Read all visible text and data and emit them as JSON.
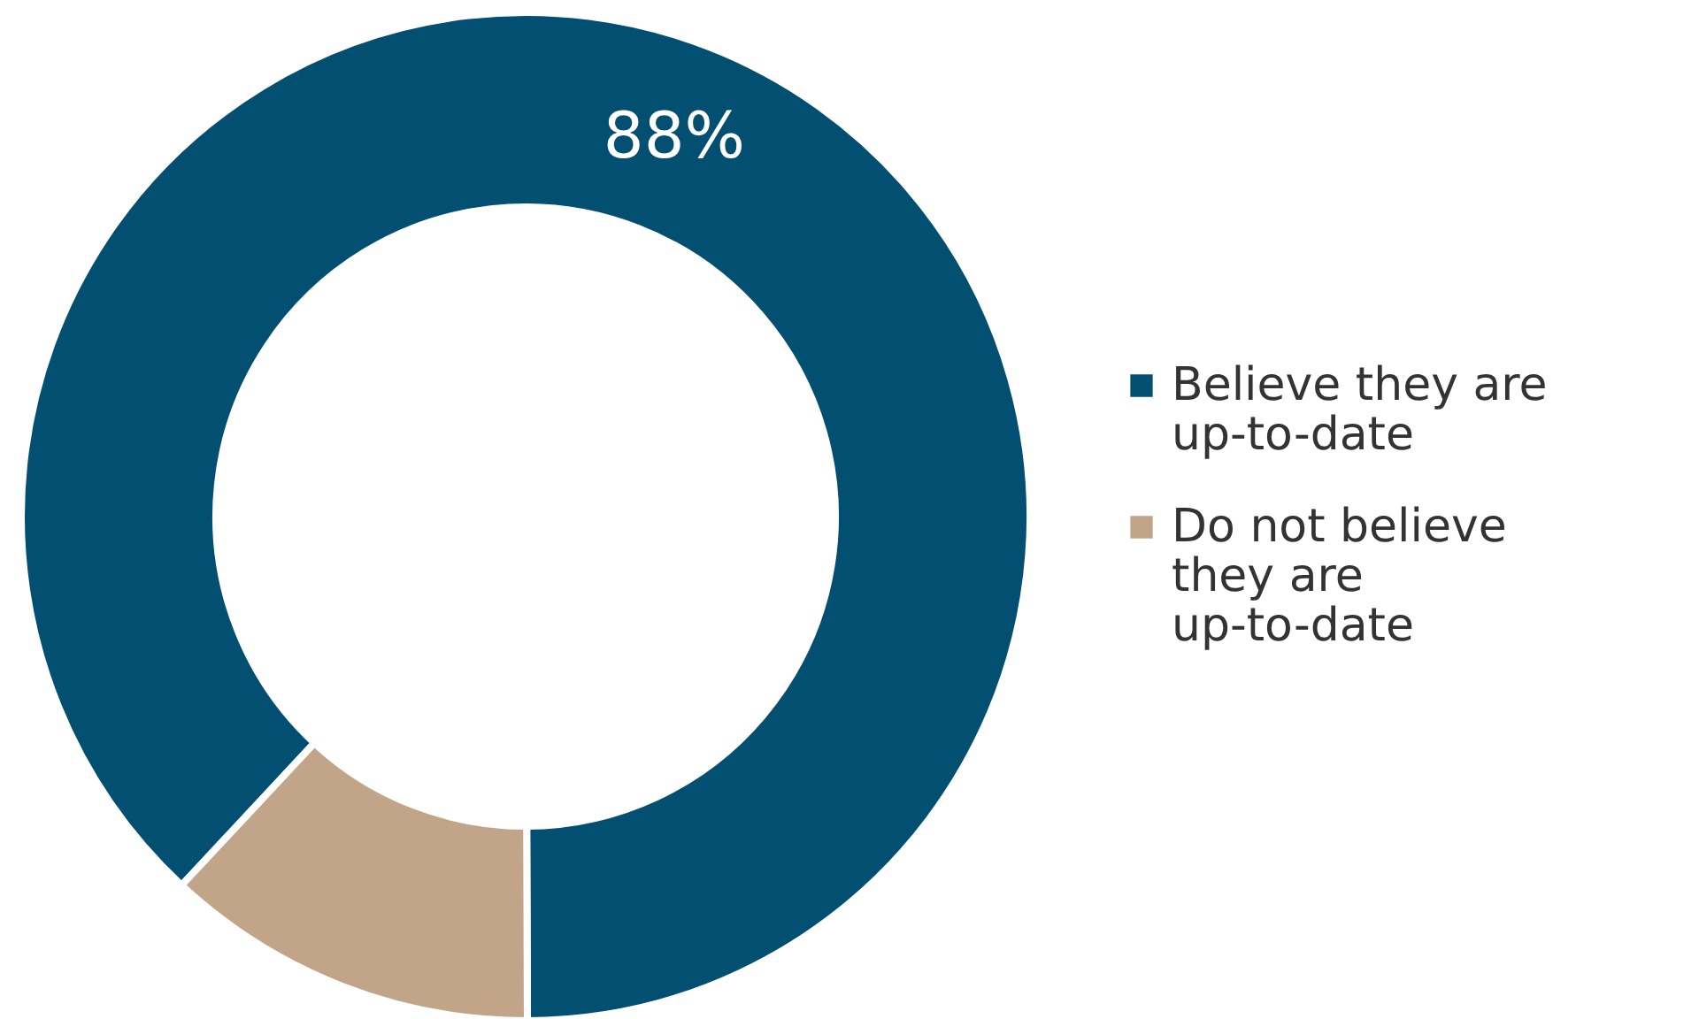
{
  "chart_data": {
    "type": "donut",
    "categories": [
      "Believe they are up-to-date",
      "Do not believe they are up-to-date"
    ],
    "values": [
      88,
      12
    ],
    "colors": [
      "#024f71",
      "#c2a588"
    ],
    "value_labels": [
      "88%",
      null
    ],
    "legend": "right"
  }
}
